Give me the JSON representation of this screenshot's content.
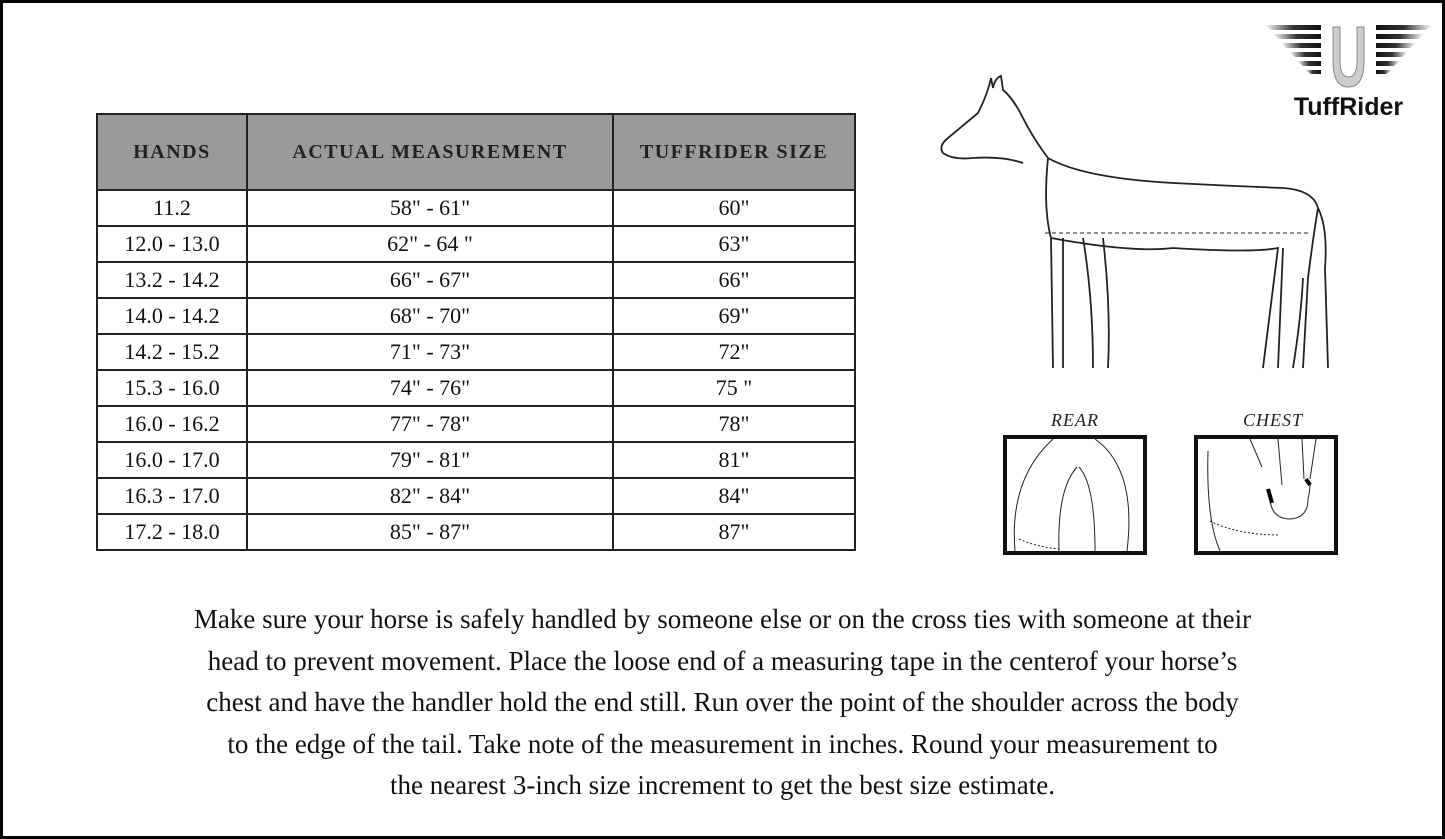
{
  "table": {
    "headers": [
      "HANDS",
      "ACTUAL MEASUREMENT",
      "TUFFRIDER SIZE"
    ],
    "header_bg": "#9a9a9a",
    "rows": [
      [
        "11.2",
        "58\" - 61\"",
        "60\""
      ],
      [
        "12.0 - 13.0",
        "62\" - 64 \"",
        "63\""
      ],
      [
        "13.2 - 14.2",
        "66\" - 67\"",
        "66\""
      ],
      [
        "14.0 - 14.2",
        "68\" - 70\"",
        "69\""
      ],
      [
        "14.2 - 15.2",
        "71\" - 73\"",
        "72\""
      ],
      [
        "15.3 - 16.0",
        "74\" - 76\"",
        "75 \""
      ],
      [
        "16.0 - 16.2",
        "77\" - 78\"",
        "78\""
      ],
      [
        "16.0 - 17.0",
        "79\" - 81\"",
        "81\""
      ],
      [
        "16.3 - 17.0",
        "82\" - 84\"",
        "84\""
      ],
      [
        "17.2 - 18.0",
        "85\" - 87\"",
        "87\""
      ]
    ]
  },
  "logo": {
    "brand": "TuffRider",
    "icon": "winged-horseshoe-icon"
  },
  "diagram": {
    "rear_label": "REAR",
    "chest_label": "CHEST"
  },
  "instructions": {
    "lines": [
      "Make sure your horse is safely handled by someone else or on the cross ties with someone at their",
      "head to prevent movement. Place the loose end of a measuring tape in the centerof your horse’s",
      "chest and have the handler hold the end still. Run over the point of the shoulder across the body",
      "to the edge of the tail. Take note of the measurement in inches. Round your measurement to",
      "the nearest 3-inch size increment to get the best size estimate."
    ]
  }
}
